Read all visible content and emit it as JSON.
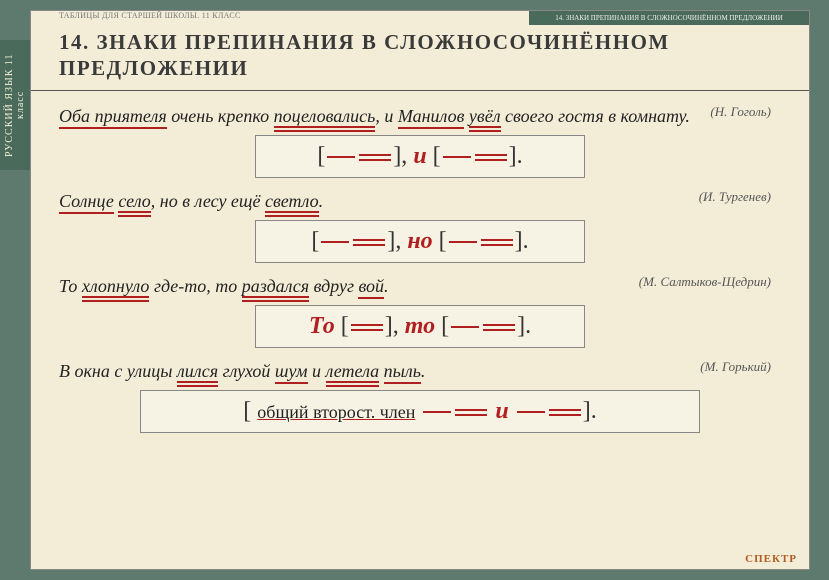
{
  "header": {
    "series": "ТАБЛИЦЫ ДЛЯ СТАРШЕЙ ШКОЛЫ. 11 КЛАСС",
    "topic_tag": "14. ЗНАКИ ПРЕПИНАНИЯ В СЛОЖНОСОЧИНЁННОМ ПРЕДЛОЖЕНИИ",
    "title": "14. ЗНАКИ ПРЕПИНАНИЯ В СЛОЖНОСОЧИНЁННОМ ПРЕДЛОЖЕНИИ"
  },
  "side_tab": "РУССКИЙ ЯЗЫК  11 класс",
  "examples": [
    {
      "parts": [
        {
          "t": "Оба ",
          "u": "s"
        },
        {
          "t": "приятеля",
          "u": "s"
        },
        {
          "t": " очень крепко "
        },
        {
          "t": "поцеловались",
          "u": "d"
        },
        {
          "t": ", и "
        },
        {
          "t": "Манилов",
          "u": "s"
        },
        {
          "t": " "
        },
        {
          "t": "увёл",
          "u": "d"
        },
        {
          "t": " своего гостя в комнату."
        }
      ],
      "author": "(Н. Гоголь)",
      "schema": {
        "type": "basic",
        "conj": "и"
      }
    },
    {
      "parts": [
        {
          "t": "Солнце",
          "u": "s"
        },
        {
          "t": " "
        },
        {
          "t": "село",
          "u": "d"
        },
        {
          "t": ", но в лесу ещё "
        },
        {
          "t": "светло",
          "u": "d"
        },
        {
          "t": "."
        }
      ],
      "author": "(И. Тургенев)",
      "schema": {
        "type": "basic",
        "conj": "но"
      }
    },
    {
      "parts": [
        {
          "t": "То "
        },
        {
          "t": "хлопнуло",
          "u": "d"
        },
        {
          "t": " где-то, то "
        },
        {
          "t": "раздался",
          "u": "d"
        },
        {
          "t": " вдруг "
        },
        {
          "t": "вой",
          "u": "s"
        },
        {
          "t": "."
        }
      ],
      "author": "(М. Салтыков-Щедрин)",
      "schema": {
        "type": "correlative",
        "conj1": "То",
        "conj2": "то"
      }
    },
    {
      "parts": [
        {
          "t": "В окна с улицы "
        },
        {
          "t": "лился",
          "u": "d"
        },
        {
          "t": " глухой "
        },
        {
          "t": "шум",
          "u": "s"
        },
        {
          "t": " и "
        },
        {
          "t": "летела",
          "u": "d"
        },
        {
          "t": " "
        },
        {
          "t": "пыль",
          "u": "s"
        },
        {
          "t": "."
        }
      ],
      "author": "(М. Горький)",
      "schema": {
        "type": "common",
        "label": "общий второст. член",
        "conj": "и"
      }
    }
  ],
  "colors": {
    "frame": "#5e7a6e",
    "page_bg": "#f3edd8",
    "accent": "#b02020",
    "tab_bg": "#4a6b5b"
  },
  "footer": {
    "logo": "СПЕКТР"
  }
}
